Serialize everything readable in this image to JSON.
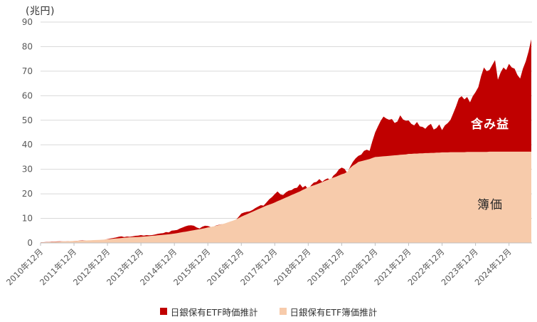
{
  "chart_data": {
    "type": "area",
    "title": "",
    "unit_label": "(兆円)",
    "ylim": [
      0,
      90
    ],
    "y_ticks": [
      0,
      10,
      20,
      30,
      40,
      50,
      60,
      70,
      80,
      90
    ],
    "grid": "horizontal",
    "legend_position": "bottom-center",
    "x_start_label": "2010年12月",
    "x_tick_labels": [
      "2010年12月",
      "2011年12月",
      "2012年12月",
      "2013年12月",
      "2014年12月",
      "2015年12月",
      "2016年12月",
      "2017年12月",
      "2018年12月",
      "2019年12月",
      "2020年12月",
      "2021年12月",
      "2022年12月",
      "2023年12月",
      "2024年12月"
    ],
    "x_tick_month_index": [
      0,
      12,
      24,
      36,
      48,
      60,
      72,
      84,
      96,
      108,
      120,
      132,
      144,
      156,
      168
    ],
    "series": [
      {
        "name": "日銀保有ETF時価推計",
        "color": "#C00000",
        "values": [
          0.2,
          0.3,
          0.35,
          0.4,
          0.5,
          0.55,
          0.6,
          0.65,
          0.6,
          0.6,
          0.7,
          0.7,
          0.75,
          0.85,
          0.95,
          1.05,
          1.0,
          0.95,
          1.0,
          1.05,
          1.1,
          1.15,
          1.15,
          1.3,
          1.6,
          1.8,
          2.0,
          2.2,
          2.5,
          2.7,
          2.4,
          2.6,
          2.5,
          2.7,
          2.9,
          3.0,
          3.2,
          3.0,
          3.2,
          3.1,
          3.2,
          3.4,
          3.7,
          3.9,
          4.0,
          4.4,
          4.3,
          5.0,
          5.1,
          5.3,
          5.9,
          6.3,
          6.8,
          7.1,
          7.2,
          7.0,
          6.3,
          5.9,
          6.6,
          7.0,
          6.9,
          6.5,
          6.6,
          7.1,
          7.4,
          7.6,
          7.2,
          8.0,
          8.4,
          8.8,
          9.3,
          10.6,
          12.0,
          12.4,
          12.7,
          12.9,
          13.4,
          14.2,
          14.8,
          15.4,
          15.2,
          16.5,
          17.8,
          18.7,
          19.9,
          21.0,
          19.8,
          19.5,
          20.6,
          21.3,
          21.5,
          22.3,
          22.5,
          24.0,
          22.6,
          23.3,
          21.8,
          23.5,
          24.6,
          24.9,
          26.0,
          24.9,
          25.8,
          26.3,
          25.6,
          27.4,
          28.4,
          30.0,
          30.7,
          30.2,
          28.5,
          31.0,
          33.0,
          34.5,
          35.5,
          36.0,
          37.5,
          38.0,
          37.5,
          41.5,
          45.1,
          47.5,
          49.8,
          51.5,
          50.7,
          50.2,
          50.5,
          48.9,
          49.5,
          52.0,
          50.3,
          49.8,
          49.9,
          48.5,
          47.9,
          49.3,
          47.5,
          47.3,
          46.5,
          47.8,
          48.5,
          46.2,
          46.8,
          48.3,
          46.0,
          47.9,
          48.8,
          50.1,
          52.8,
          55.6,
          58.9,
          59.8,
          58.5,
          59.5,
          57.3,
          59.8,
          61.5,
          63.5,
          68.0,
          71.5,
          70.0,
          70.5,
          72.5,
          74.5,
          66.5,
          69.5,
          71.5,
          70.5,
          73.0,
          71.5,
          71.0,
          68.5,
          67.0,
          71.0,
          74.0,
          78.0,
          83.0
        ]
      },
      {
        "name": "日銀保有ETF簿価推計",
        "color": "#F7CBAB",
        "values": [
          0.2,
          0.25,
          0.3,
          0.35,
          0.4,
          0.45,
          0.5,
          0.55,
          0.6,
          0.65,
          0.7,
          0.75,
          0.8,
          0.85,
          0.9,
          0.95,
          1.0,
          1.05,
          1.1,
          1.15,
          1.2,
          1.25,
          1.3,
          1.4,
          1.5,
          1.6,
          1.7,
          1.8,
          1.9,
          2.0,
          2.1,
          2.2,
          2.3,
          2.35,
          2.4,
          2.45,
          2.5,
          2.6,
          2.7,
          2.8,
          2.9,
          3.0,
          3.1,
          3.2,
          3.3,
          3.4,
          3.5,
          3.65,
          3.8,
          4.0,
          4.2,
          4.4,
          4.6,
          4.8,
          5.0,
          5.2,
          5.4,
          5.6,
          5.8,
          6.05,
          6.3,
          6.5,
          6.7,
          7.0,
          7.3,
          7.6,
          7.9,
          8.3,
          8.7,
          9.1,
          9.5,
          10.1,
          10.7,
          11.2,
          11.7,
          12.2,
          12.7,
          13.2,
          13.7,
          14.2,
          14.7,
          15.2,
          15.6,
          16.0,
          16.5,
          17.0,
          17.5,
          18.0,
          18.5,
          19.0,
          19.5,
          20.0,
          20.5,
          21.0,
          21.6,
          22.1,
          22.7,
          23.1,
          23.5,
          23.9,
          24.3,
          24.8,
          25.3,
          25.7,
          26.2,
          26.6,
          27.0,
          27.5,
          28.0,
          28.3,
          29.0,
          30.5,
          31.5,
          32.2,
          33.0,
          33.3,
          33.6,
          33.9,
          34.2,
          34.6,
          35.0,
          35.1,
          35.2,
          35.3,
          35.4,
          35.5,
          35.6,
          35.7,
          35.8,
          35.9,
          36.0,
          36.1,
          36.3,
          36.3,
          36.4,
          36.4,
          36.5,
          36.5,
          36.6,
          36.6,
          36.7,
          36.7,
          36.8,
          36.8,
          36.9,
          36.9,
          36.9,
          37.0,
          37.0,
          37.0,
          37.0,
          37.0,
          37.0,
          37.1,
          37.1,
          37.1,
          37.1,
          37.1,
          37.1,
          37.1,
          37.1,
          37.2,
          37.2,
          37.2,
          37.2,
          37.2,
          37.2,
          37.2,
          37.2,
          37.2,
          37.2,
          37.2,
          37.2,
          37.2,
          37.2,
          37.2,
          37.2
        ]
      }
    ],
    "annotations": [
      {
        "text": "含み益",
        "color": "#FFFFFF"
      },
      {
        "text": "簿価",
        "color": "#262626"
      }
    ],
    "colors": {
      "grid": "#D9D9D9",
      "axis": "#BFBFBF",
      "tick_text": "#595959",
      "unit_text": "#333333"
    }
  }
}
